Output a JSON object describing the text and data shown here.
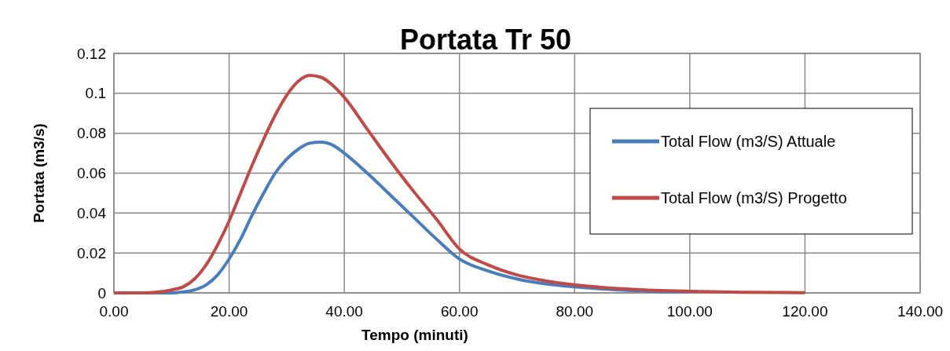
{
  "chart_data": {
    "type": "line",
    "title": "Portata Tr 50",
    "xlabel": "Tempo (minuti)",
    "ylabel": "Portata (m3/s)",
    "xlim": [
      0,
      140
    ],
    "xticks": [
      {
        "value": 0,
        "label": "0.00"
      },
      {
        "value": 20,
        "label": "20.00"
      },
      {
        "value": 40,
        "label": "40.00"
      },
      {
        "value": 60,
        "label": "60.00"
      },
      {
        "value": 80,
        "label": "80.00"
      },
      {
        "value": 100,
        "label": "100.00"
      },
      {
        "value": 120,
        "label": "120.00"
      },
      {
        "value": 140,
        "label": "140.00"
      }
    ],
    "ylim": [
      0,
      0.12
    ],
    "yticks": [
      0,
      0.02,
      0.04,
      0.06,
      0.08,
      0.1,
      0.12
    ],
    "grid": true,
    "legend": "right",
    "marker": "none",
    "line_style": "solid",
    "x": [
      0,
      5,
      10,
      12,
      14,
      16,
      18,
      20,
      22,
      24,
      26,
      28,
      30,
      32,
      34,
      36,
      38,
      40,
      44,
      48,
      52,
      56,
      60,
      65,
      70,
      75,
      80,
      90,
      100,
      110,
      120
    ],
    "series": [
      {
        "name": "Total Flow (m3/S) Attuale",
        "color": "#4a7ebb",
        "values": [
          0,
          0,
          0,
          0.0005,
          0.0015,
          0.004,
          0.009,
          0.017,
          0.027,
          0.039,
          0.05,
          0.06,
          0.067,
          0.072,
          0.075,
          0.0755,
          0.074,
          0.07,
          0.06,
          0.049,
          0.038,
          0.027,
          0.017,
          0.011,
          0.007,
          0.0045,
          0.003,
          0.0012,
          0.0005,
          null,
          null
        ]
      },
      {
        "name": "Total Flow (m3/S) Progetto",
        "color": "#be4b48",
        "values": [
          0,
          0,
          0.0015,
          0.003,
          0.007,
          0.014,
          0.024,
          0.036,
          0.05,
          0.064,
          0.077,
          0.089,
          0.099,
          0.106,
          0.109,
          0.108,
          0.104,
          0.098,
          0.082,
          0.066,
          0.051,
          0.037,
          0.022,
          0.014,
          0.009,
          0.006,
          0.004,
          0.0018,
          0.0008,
          0.0003,
          0.0001
        ]
      }
    ]
  }
}
